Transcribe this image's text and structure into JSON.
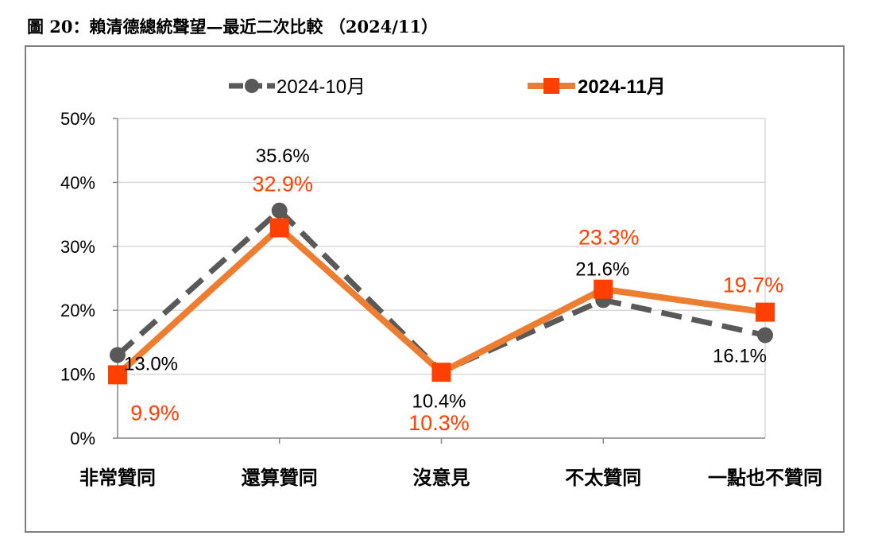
{
  "figure_title": "圖 20：賴清德總統聲望—最近二次比較 （2024/11）",
  "chart_data": {
    "type": "line",
    "categories": [
      "非常贊同",
      "還算贊同",
      "沒意見",
      "不太贊同",
      "一點也不贊同"
    ],
    "ylim": [
      0,
      50
    ],
    "yticks": [
      "0%",
      "10%",
      "20%",
      "30%",
      "40%",
      "50%"
    ],
    "grid": true,
    "legend_position": "top-center",
    "series": [
      {
        "name": "2024-10月",
        "values": [
          13.0,
          35.6,
          10.4,
          21.6,
          16.1
        ],
        "labels": [
          "13.0%",
          "35.6%",
          "10.4%",
          "21.6%",
          "16.1%"
        ],
        "color": "#595959",
        "style": "dashed",
        "marker": "circle"
      },
      {
        "name": "2024-11月",
        "values": [
          9.9,
          32.9,
          10.3,
          23.3,
          19.7
        ],
        "labels": [
          "9.9%",
          "32.9%",
          "10.3%",
          "23.3%",
          "19.7%"
        ],
        "color": "#ed7d31",
        "marker_color": "#ff4000",
        "style": "solid",
        "marker": "square"
      }
    ]
  }
}
